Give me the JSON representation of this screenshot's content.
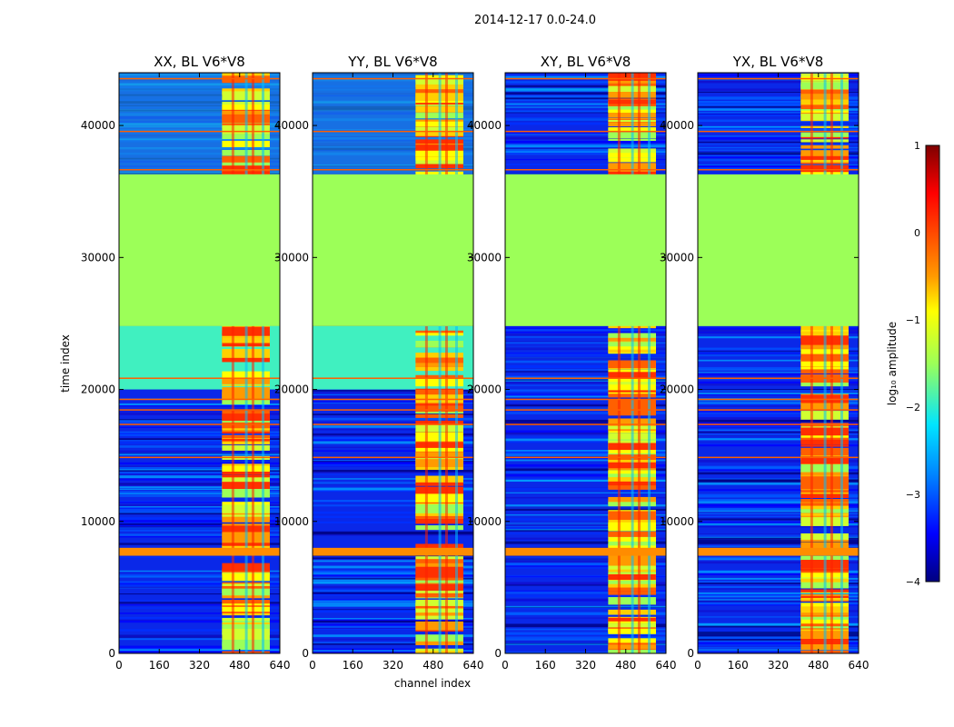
{
  "figure_title": "2014-12-17 0.0-24.0",
  "xlabel": "channel index",
  "ylabel": "time index",
  "colorbar": {
    "label": "log₁₀ amplitude",
    "range": [
      -4,
      1
    ],
    "ticks": [
      "1",
      "0",
      "−1",
      "−2",
      "−3",
      "−4"
    ],
    "tick_values": [
      1,
      0,
      -1,
      -2,
      -3,
      -4
    ],
    "colors": [
      "#7f0000",
      "#ff0000",
      "#ff9a00",
      "#ffff00",
      "#9cff58",
      "#00e5ff",
      "#0080ff",
      "#0000ff",
      "#00007f"
    ]
  },
  "chart_data": {
    "type": "heatmap",
    "title": "2014-12-17 0.0-24.0",
    "xlabel": "channel index",
    "ylabel": "time index",
    "x_range": [
      0,
      640
    ],
    "y_range": [
      0,
      44000
    ],
    "xticks": [
      0,
      160,
      320,
      480,
      640
    ],
    "yticks": [
      0,
      10000,
      20000,
      30000,
      40000
    ],
    "panels": [
      {
        "title": "XX, BL V6*V8",
        "background_level": "blue"
      },
      {
        "title": "YY, BL V6*V8",
        "background_level": "blue"
      },
      {
        "title": "XY, BL V6*V8",
        "background_level": "blue"
      },
      {
        "title": "YX, BL V6*V8",
        "background_level": "blue"
      }
    ],
    "flagged_region": {
      "y_start": 24800,
      "y_end": 36300,
      "value": -1.0
    },
    "orange_band": {
      "y_start": 7400,
      "y_end": 8000,
      "value": 0.1
    },
    "active_channel_band": [
      410,
      600
    ],
    "colorbar_range": [
      -4,
      1
    ]
  }
}
